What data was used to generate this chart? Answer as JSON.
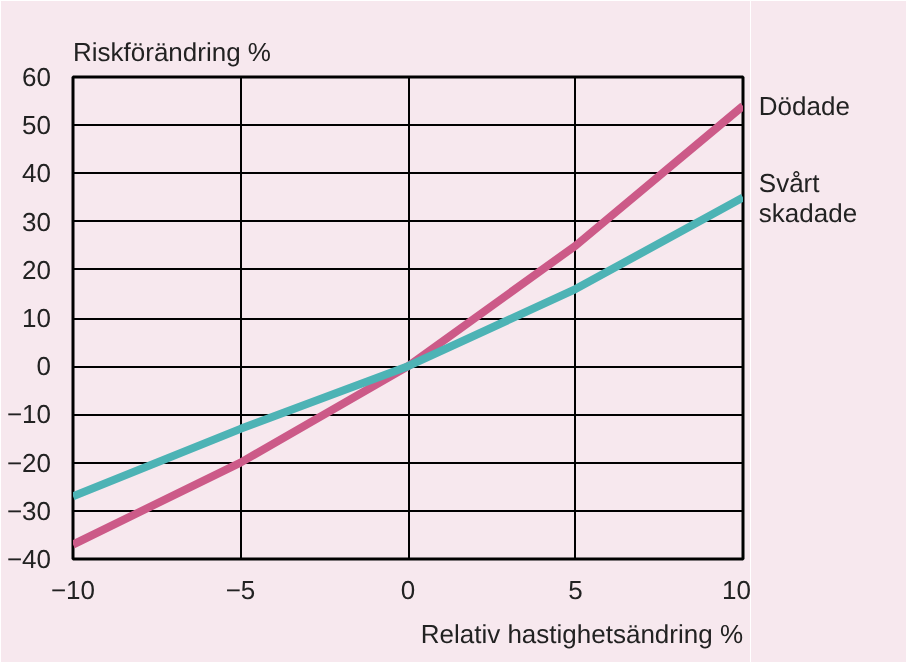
{
  "chart_data": {
    "type": "line",
    "xlabel": "Relativ hastighetsändring %",
    "ylabel": "Riskförändring %",
    "x": [
      -10,
      -5,
      0,
      5,
      10
    ],
    "series": [
      {
        "name": "Dödade",
        "color": "#cc5a88",
        "values": [
          -37,
          -20,
          0,
          25,
          54
        ]
      },
      {
        "name": "Svårt skadade",
        "color": "#4db3b5",
        "values": [
          -27,
          -13,
          0,
          16,
          35
        ]
      }
    ],
    "xlim": [
      -10,
      10
    ],
    "ylim": [
      -40,
      60
    ],
    "xticks": [
      -10,
      -5,
      0,
      5,
      10
    ],
    "yticks": [
      -40,
      -30,
      -20,
      -10,
      0,
      10,
      20,
      30,
      40,
      50,
      60
    ],
    "grid": true,
    "marker": "none",
    "line_style": "solid"
  }
}
